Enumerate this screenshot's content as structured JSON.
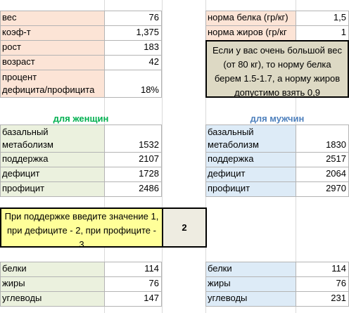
{
  "inputs": {
    "weight": {
      "label": "вес",
      "value": "76"
    },
    "coef": {
      "label": "коэф-т",
      "value": "1,375"
    },
    "height": {
      "label": "рост",
      "value": "183"
    },
    "age": {
      "label": "возраст",
      "value": "42"
    },
    "percent": {
      "label1": "процент",
      "label2": "дефицита/профицита",
      "value": "18%"
    }
  },
  "norms": {
    "protein": {
      "label": "норма белка (гр/кг)",
      "value": "1,5"
    },
    "fat": {
      "label": "норма жиров (гр/кг",
      "value": "1"
    },
    "note": "Если у вас очень большой вес (от 80 кг), то норму белка берем 1.5-1.7, а норму жиров допустимо взять 0,9"
  },
  "women": {
    "header": "для женщин",
    "basal_label1": "базальный",
    "basal_label2": "метаболизм",
    "basal": "1532",
    "maintain_label": "поддержка",
    "maintain": "2107",
    "deficit_label": "дефицит",
    "deficit": "1728",
    "surplus_label": "профицит",
    "surplus": "2486",
    "protein_label": "белки",
    "protein": "114",
    "fat_label": "жиры",
    "fat": "76",
    "carbs_label": "углеводы",
    "carbs": "147"
  },
  "men": {
    "header": "для мужчин",
    "basal_label1": "базальный",
    "basal_label2": "метаболизм",
    "basal": "1830",
    "maintain_label": "поддержка",
    "maintain": "2517",
    "deficit_label": "дефицит",
    "deficit": "2064",
    "surplus_label": "профицит",
    "surplus": "2970",
    "protein_label": "белки",
    "protein": "114",
    "fat_label": "жиры",
    "fat": "76",
    "carbs_label": "углеводы",
    "carbs": "231"
  },
  "mode": {
    "prompt": "При поддержке введите значение 1, при дефиците - 2, при профиците - 3",
    "value": "2"
  }
}
